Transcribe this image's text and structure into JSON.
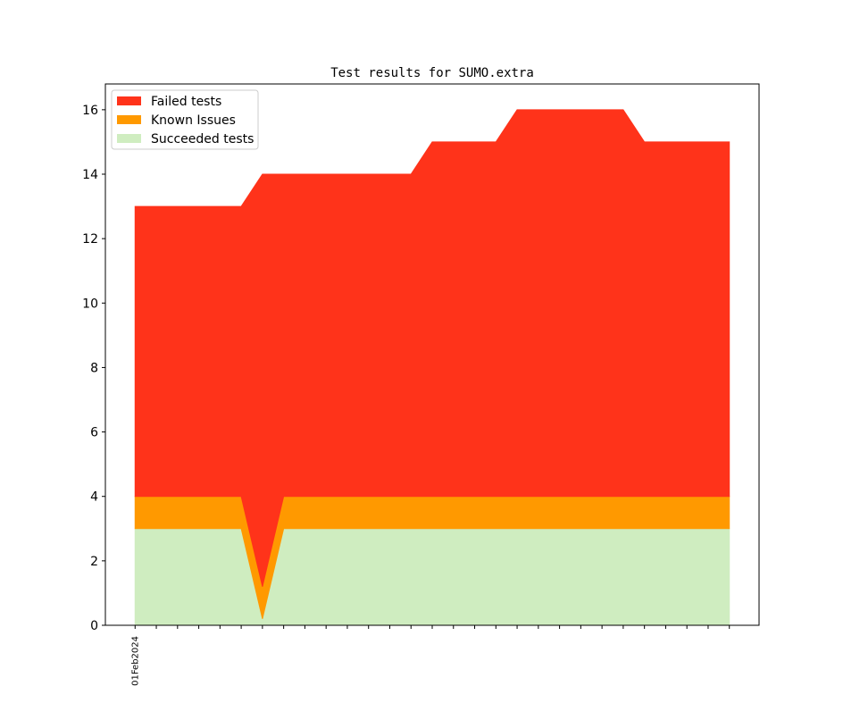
{
  "chart_data": {
    "type": "stacked_area",
    "title": "Test results for SUMO.extra",
    "categories": [
      "01Feb2024",
      null,
      null,
      null,
      null,
      null,
      null,
      null,
      null,
      null,
      null,
      null,
      null,
      null,
      null,
      null,
      null,
      null,
      null,
      null,
      null,
      null,
      null,
      null,
      null,
      null,
      null,
      null,
      null
    ],
    "series": [
      {
        "name": "Failed tests",
        "color": "#ff331a",
        "values": [
          9,
          9,
          9,
          9,
          9,
          9,
          12.8,
          10,
          10,
          10,
          10,
          10,
          10,
          10,
          11,
          11,
          11,
          11,
          12,
          12,
          12,
          12,
          12,
          12,
          11,
          11,
          11,
          11,
          11
        ]
      },
      {
        "name": "Known Issues",
        "color": "#ff9900",
        "values": [
          1,
          1,
          1,
          1,
          1,
          1,
          1,
          1,
          1,
          1,
          1,
          1,
          1,
          1,
          1,
          1,
          1,
          1,
          1,
          1,
          1,
          1,
          1,
          1,
          1,
          1,
          1,
          1,
          1
        ]
      },
      {
        "name": "Succeeded tests",
        "color": "#cfedc0",
        "values": [
          3,
          3,
          3,
          3,
          3,
          3,
          0.2,
          3,
          3,
          3,
          3,
          3,
          3,
          3,
          3,
          3,
          3,
          3,
          3,
          3,
          3,
          3,
          3,
          3,
          3,
          3,
          3,
          3,
          3
        ]
      }
    ],
    "xlim": [
      -1.4,
      29.4
    ],
    "ylim": [
      0,
      16.8
    ],
    "yticks": [
      0,
      2,
      4,
      6,
      8,
      10,
      12,
      14,
      16
    ],
    "legend": "upper left"
  }
}
